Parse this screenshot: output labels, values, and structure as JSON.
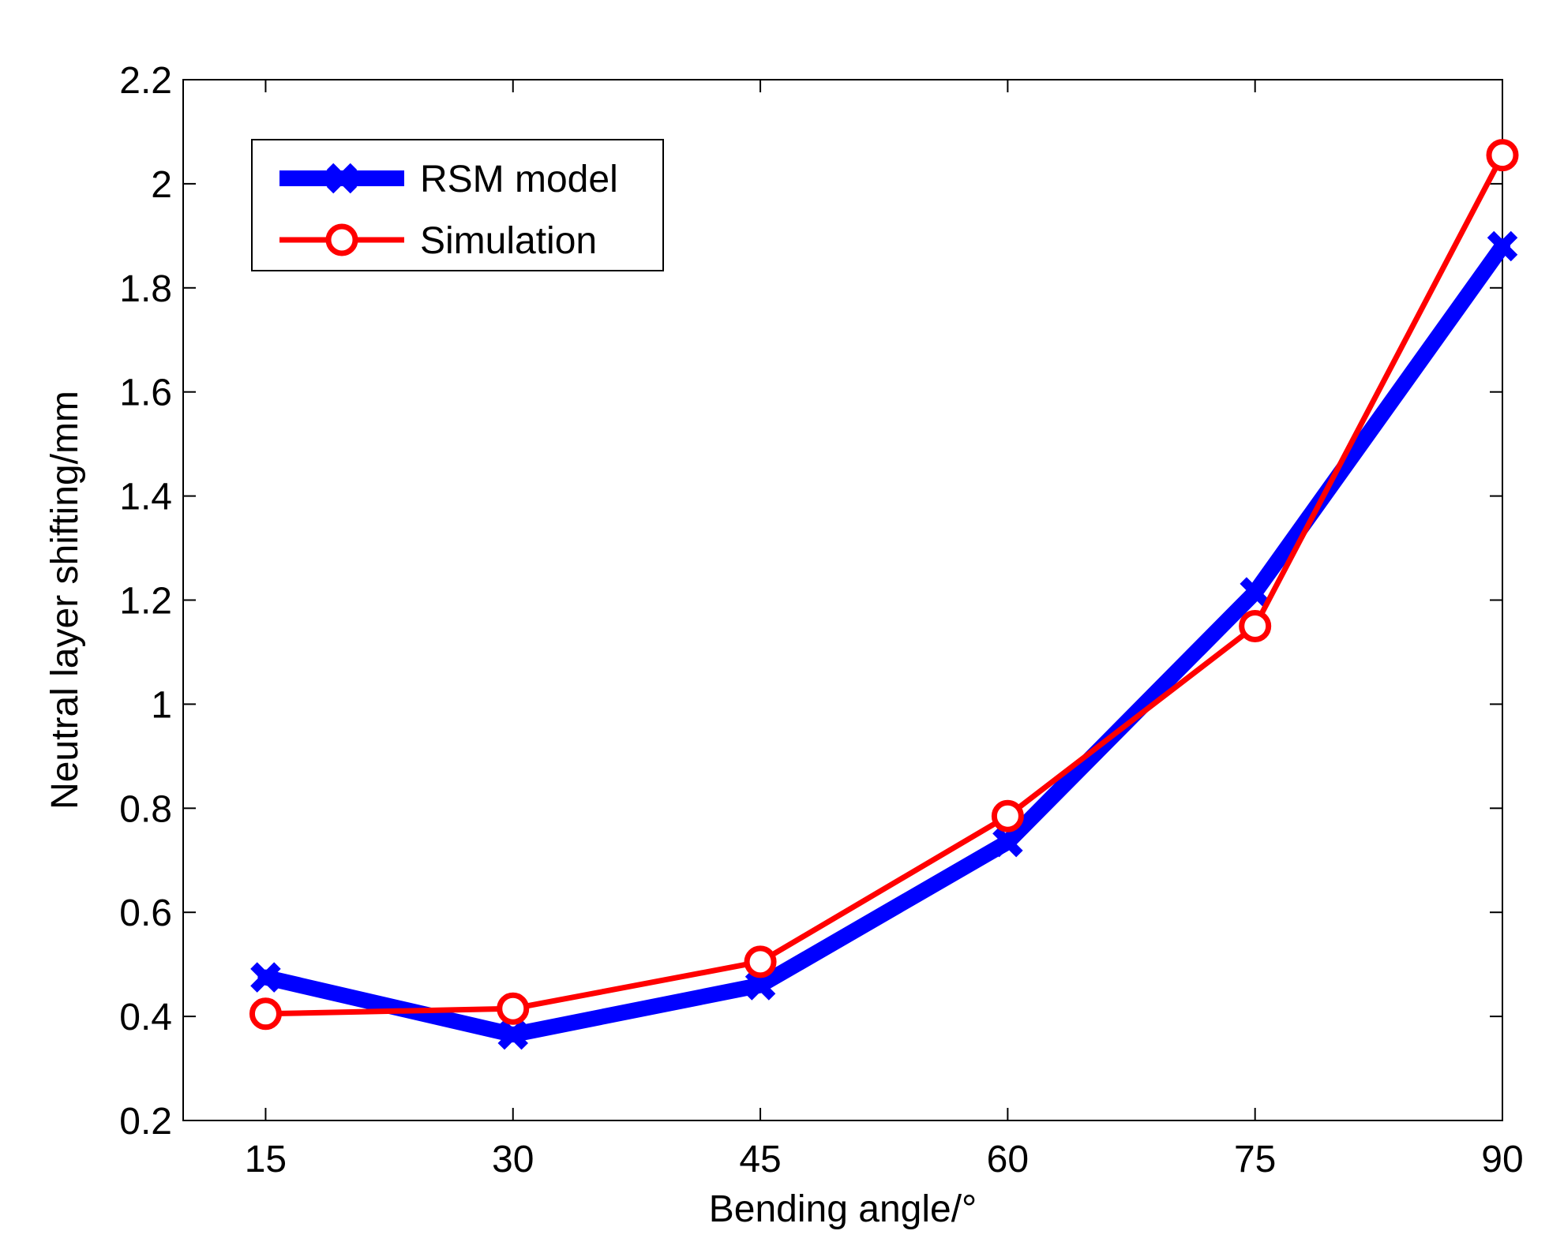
{
  "chart_data": {
    "type": "line",
    "xlabel": "Bending angle/°",
    "ylabel": "Neutral layer shifting/mm",
    "x": [
      15,
      30,
      45,
      60,
      75,
      90
    ],
    "xlim": [
      10,
      90
    ],
    "ylim": [
      0.2,
      2.2
    ],
    "xticks": [
      15,
      30,
      45,
      60,
      75,
      90
    ],
    "xtick_labels": [
      "15",
      "30",
      "45",
      "60",
      "75",
      "90"
    ],
    "yticks": [
      0.2,
      0.4,
      0.6,
      0.8,
      1.0,
      1.2,
      1.4,
      1.6,
      1.8,
      2.0,
      2.2
    ],
    "ytick_labels": [
      "0.2",
      "0.4",
      "0.6",
      "0.8",
      "1",
      "1.2",
      "1.4",
      "1.6",
      "1.8",
      "2",
      "2.2"
    ],
    "grid": false,
    "legend_position": "top-left",
    "series": [
      {
        "name": "RSM model",
        "values": [
          0.475,
          0.365,
          0.46,
          0.735,
          1.215,
          1.88
        ],
        "color": "#0000ff",
        "marker": "x",
        "line_style": "thick"
      },
      {
        "name": "Simulation",
        "values": [
          0.405,
          0.415,
          0.505,
          0.785,
          1.15,
          2.055
        ],
        "color": "#ff0000",
        "marker": "circle",
        "line_style": "normal"
      }
    ]
  }
}
